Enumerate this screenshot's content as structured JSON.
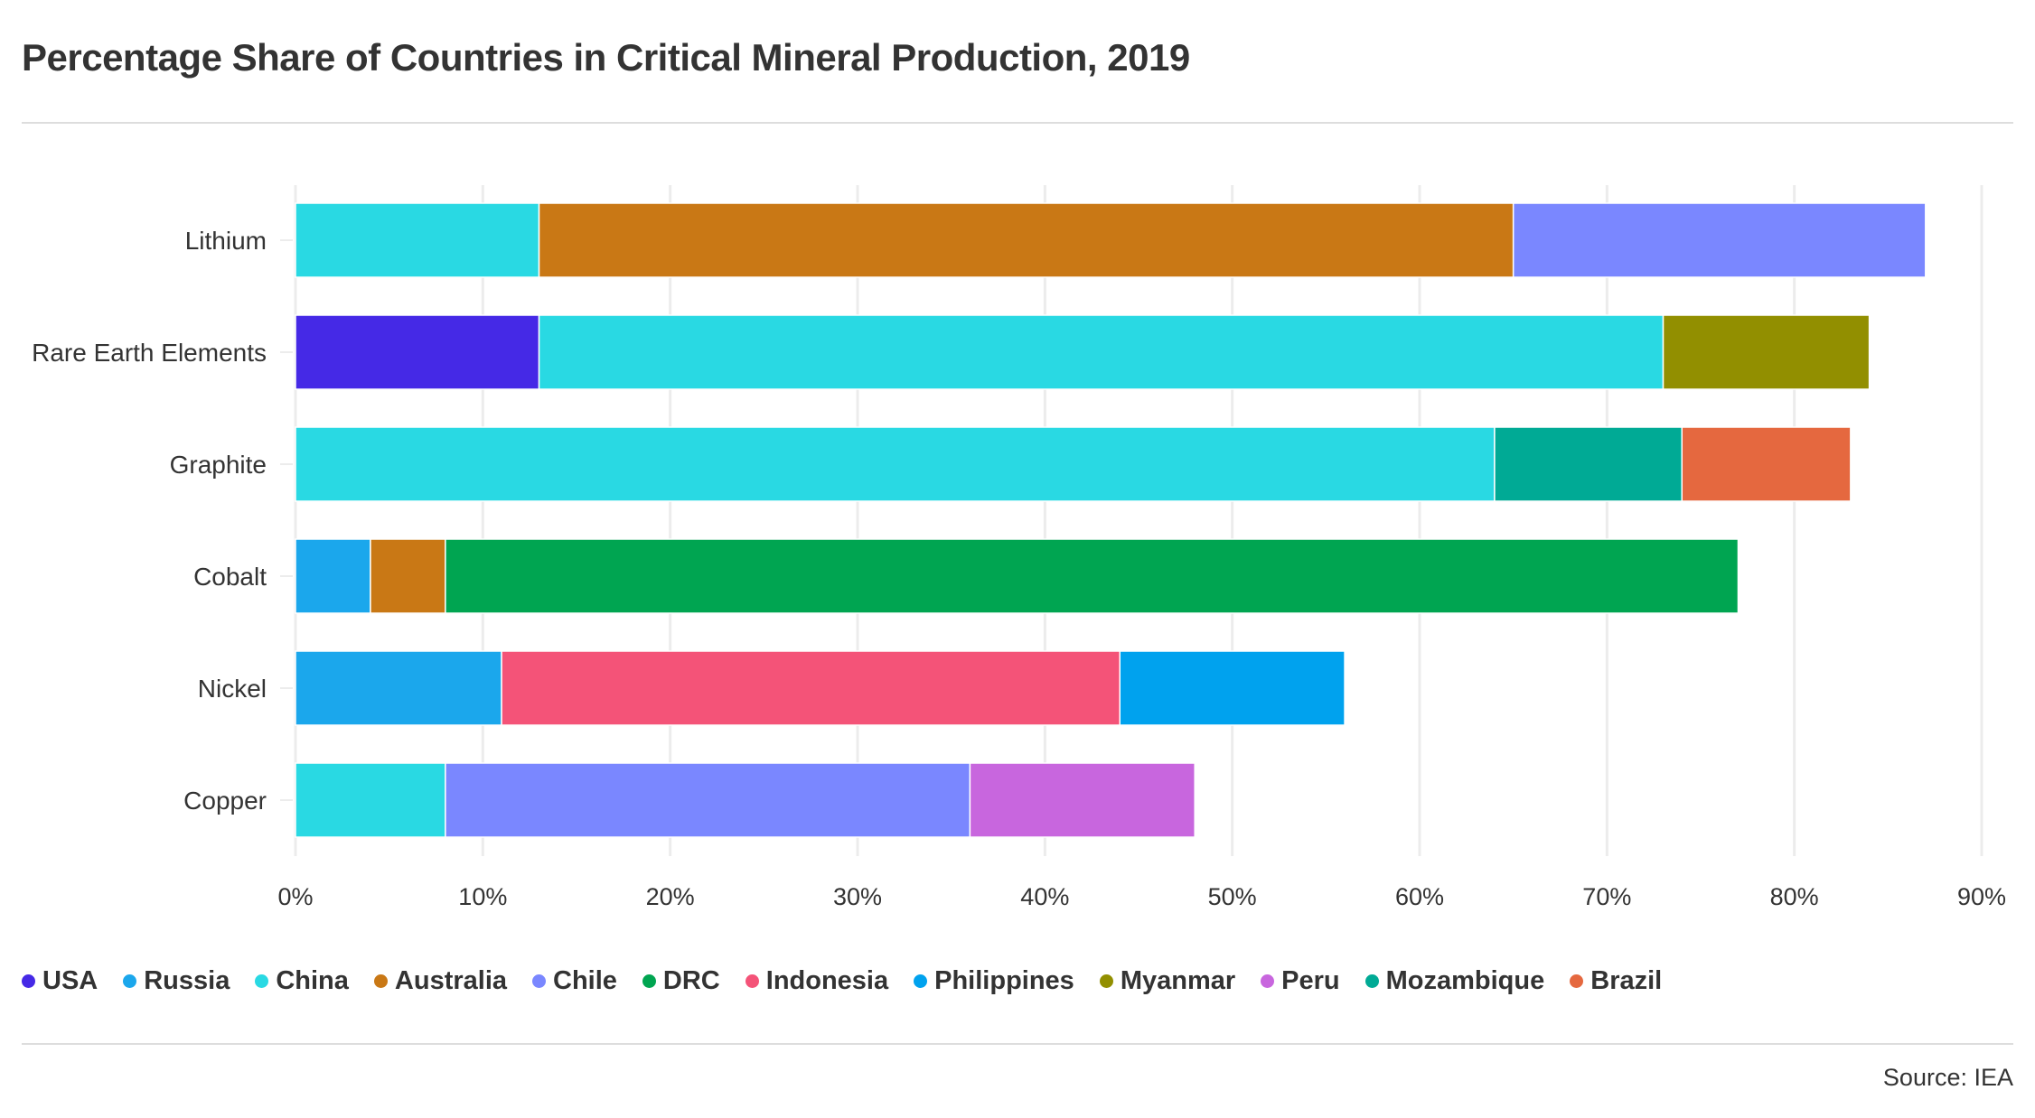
{
  "chart_data": {
    "type": "bar",
    "orientation": "horizontal",
    "stacked": true,
    "title": "Percentage Share of Countries in Critical Mineral Production, 2019",
    "source": "Source: IEA",
    "categories": [
      "Lithium",
      "Rare Earth Elements",
      "Graphite",
      "Cobalt",
      "Nickel",
      "Copper"
    ],
    "xlim": [
      0,
      90
    ],
    "xticks": [
      "0%",
      "10%",
      "20%",
      "30%",
      "40%",
      "50%",
      "60%",
      "70%",
      "80%",
      "90%"
    ],
    "grid": true,
    "legend_placement": "bottom",
    "legend": [
      "USA",
      "Russia",
      "China",
      "Australia",
      "Chile",
      "DRC",
      "Indonesia",
      "Philippines",
      "Myanmar",
      "Peru",
      "Mozambique",
      "Brazil"
    ],
    "colors": {
      "USA": "#4529e6",
      "Russia": "#1ba7ec",
      "China": "#29d9e3",
      "Australia": "#c97815",
      "Chile": "#7a87ff",
      "DRC": "#00a551",
      "Indonesia": "#f45378",
      "Philippines": "#00a2ee",
      "Myanmar": "#928f00",
      "Peru": "#c866de",
      "Mozambique": "#00aa95",
      "Brazil": "#e5683f"
    },
    "bars": [
      {
        "category": "Lithium",
        "segments": [
          {
            "country": "China",
            "value": 13
          },
          {
            "country": "Australia",
            "value": 52
          },
          {
            "country": "Chile",
            "value": 22
          }
        ]
      },
      {
        "category": "Rare Earth Elements",
        "segments": [
          {
            "country": "USA",
            "value": 13
          },
          {
            "country": "China",
            "value": 60
          },
          {
            "country": "Myanmar",
            "value": 11
          }
        ]
      },
      {
        "category": "Graphite",
        "segments": [
          {
            "country": "China",
            "value": 64
          },
          {
            "country": "Mozambique",
            "value": 10
          },
          {
            "country": "Brazil",
            "value": 9
          }
        ]
      },
      {
        "category": "Cobalt",
        "segments": [
          {
            "country": "Russia",
            "value": 4
          },
          {
            "country": "Australia",
            "value": 4
          },
          {
            "country": "DRC",
            "value": 69
          }
        ]
      },
      {
        "category": "Nickel",
        "segments": [
          {
            "country": "Russia",
            "value": 11
          },
          {
            "country": "Indonesia",
            "value": 33
          },
          {
            "country": "Philippines",
            "value": 12
          }
        ]
      },
      {
        "category": "Copper",
        "segments": [
          {
            "country": "China",
            "value": 8
          },
          {
            "country": "Chile",
            "value": 28
          },
          {
            "country": "Peru",
            "value": 12
          }
        ]
      }
    ]
  }
}
